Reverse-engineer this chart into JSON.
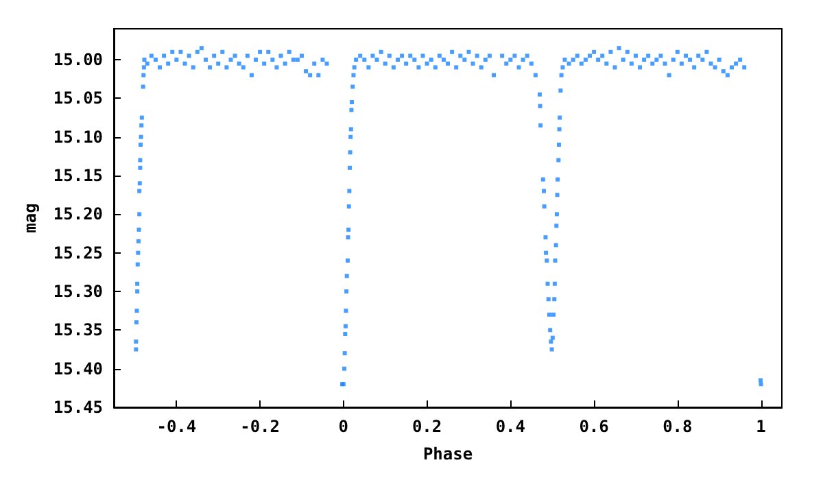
{
  "chart_data": {
    "type": "scatter",
    "xlabel": "Phase",
    "ylabel": "mag",
    "marker": "square",
    "grid": false,
    "xlim": [
      -0.55,
      1.05
    ],
    "xticks": [
      -0.4,
      -0.2,
      0,
      0.2,
      0.4,
      0.6,
      0.8,
      1
    ],
    "ylim": [
      15.45,
      14.96
    ],
    "yticks": [
      {
        "value": 15.0,
        "label": "15.00"
      },
      15.05,
      {
        "value": 15.1,
        "label": "15.10"
      },
      15.15,
      {
        "value": 15.2,
        "label": "15.20"
      },
      15.25,
      {
        "value": 15.3,
        "label": "15.30"
      },
      15.35,
      {
        "value": 15.4,
        "label": "15.40"
      },
      15.45
    ],
    "series": [
      {
        "color": "#1a84ff",
        "x": [
          -0.497,
          -0.497,
          -0.496,
          -0.495,
          -0.494,
          -0.494,
          -0.493,
          -0.492,
          -0.491,
          -0.49,
          -0.489,
          -0.489,
          -0.488,
          -0.487,
          -0.487,
          -0.486,
          -0.485,
          -0.484,
          -0.483,
          -0.48,
          -0.479,
          -0.478,
          -0.477,
          -0.47,
          -0.46,
          -0.45,
          -0.44,
          -0.43,
          -0.42,
          -0.41,
          -0.4,
          -0.39,
          -0.38,
          -0.37,
          -0.36,
          -0.35,
          -0.34,
          -0.33,
          -0.32,
          -0.31,
          -0.3,
          -0.29,
          -0.28,
          -0.27,
          -0.26,
          -0.25,
          -0.24,
          -0.23,
          -0.22,
          -0.21,
          -0.2,
          -0.19,
          -0.18,
          -0.17,
          -0.16,
          -0.15,
          -0.14,
          -0.13,
          -0.12,
          -0.11,
          -0.1,
          -0.09,
          -0.08,
          -0.07,
          -0.06,
          -0.05,
          -0.04,
          -0.003,
          0.0,
          0.002,
          0.003,
          0.004,
          0.005,
          0.006,
          0.007,
          0.008,
          0.01,
          0.011,
          0.012,
          0.013,
          0.014,
          0.015,
          0.016,
          0.017,
          0.018,
          0.019,
          0.02,
          0.022,
          0.024,
          0.026,
          0.03,
          0.04,
          0.05,
          0.06,
          0.07,
          0.08,
          0.09,
          0.1,
          0.11,
          0.12,
          0.13,
          0.14,
          0.15,
          0.16,
          0.17,
          0.18,
          0.19,
          0.2,
          0.21,
          0.22,
          0.23,
          0.24,
          0.25,
          0.26,
          0.27,
          0.28,
          0.29,
          0.3,
          0.31,
          0.32,
          0.33,
          0.34,
          0.35,
          0.36,
          0.38,
          0.39,
          0.4,
          0.41,
          0.42,
          0.43,
          0.44,
          0.45,
          0.46,
          0.47,
          0.471,
          0.472,
          0.478,
          0.48,
          0.481,
          0.484,
          0.485,
          0.487,
          0.489,
          0.491,
          0.493,
          0.495,
          0.497,
          0.499,
          0.501,
          0.503,
          0.505,
          0.506,
          0.507,
          0.509,
          0.51,
          0.511,
          0.512,
          0.513,
          0.515,
          0.516,
          0.517,
          0.518,
          0.52,
          0.522,
          0.525,
          0.53,
          0.54,
          0.55,
          0.56,
          0.57,
          0.58,
          0.59,
          0.6,
          0.61,
          0.62,
          0.63,
          0.64,
          0.65,
          0.66,
          0.67,
          0.68,
          0.69,
          0.7,
          0.71,
          0.72,
          0.73,
          0.74,
          0.75,
          0.76,
          0.77,
          0.78,
          0.79,
          0.8,
          0.81,
          0.82,
          0.83,
          0.84,
          0.85,
          0.86,
          0.87,
          0.88,
          0.89,
          0.9,
          0.91,
          0.92,
          0.93,
          0.94,
          0.95,
          0.96,
          0.999,
          1.0
        ],
        "values": [
          15.375,
          15.365,
          15.34,
          15.325,
          15.3,
          15.29,
          15.265,
          15.25,
          15.235,
          15.22,
          15.2,
          15.17,
          15.16,
          15.14,
          15.13,
          15.11,
          15.1,
          15.085,
          15.075,
          15.035,
          15.02,
          15.01,
          15.0,
          15.005,
          14.995,
          15.0,
          15.01,
          14.995,
          15.005,
          14.99,
          15.0,
          14.99,
          15.005,
          14.995,
          15.01,
          14.99,
          14.985,
          15.0,
          15.01,
          14.995,
          15.005,
          14.99,
          15.01,
          15.0,
          14.995,
          15.005,
          15.01,
          14.995,
          15.02,
          15.0,
          14.99,
          15.005,
          14.99,
          15.0,
          15.01,
          14.995,
          15.005,
          14.99,
          15.0,
          15.0,
          14.995,
          15.015,
          15.02,
          15.005,
          15.02,
          15.0,
          15.005,
          15.42,
          15.42,
          15.4,
          15.38,
          15.355,
          15.345,
          15.325,
          15.3,
          15.28,
          15.26,
          15.23,
          15.22,
          15.19,
          15.17,
          15.14,
          15.12,
          15.1,
          15.09,
          15.065,
          15.055,
          15.035,
          15.02,
          15.01,
          15.0,
          14.995,
          15.0,
          15.01,
          14.995,
          15.0,
          14.99,
          15.005,
          14.995,
          15.01,
          15.0,
          14.995,
          15.005,
          14.995,
          15.0,
          15.01,
          14.995,
          15.005,
          15.0,
          15.01,
          14.995,
          15.0,
          15.005,
          14.99,
          15.01,
          14.995,
          15.0,
          14.99,
          15.005,
          14.995,
          15.01,
          15.0,
          14.995,
          15.02,
          14.995,
          15.005,
          15.0,
          14.995,
          15.01,
          15.0,
          14.995,
          15.005,
          15.02,
          15.045,
          15.06,
          15.085,
          15.155,
          15.17,
          15.19,
          15.23,
          15.25,
          15.26,
          15.29,
          15.31,
          15.33,
          15.35,
          15.365,
          15.375,
          15.36,
          15.33,
          15.31,
          15.29,
          15.26,
          15.24,
          15.215,
          15.2,
          15.175,
          15.155,
          15.13,
          15.11,
          15.09,
          15.075,
          15.04,
          15.02,
          15.01,
          15.0,
          15.005,
          15.0,
          14.995,
          15.005,
          15.0,
          14.995,
          14.99,
          15.0,
          14.995,
          15.005,
          14.99,
          15.01,
          14.985,
          15.0,
          14.99,
          15.005,
          14.995,
          15.01,
          15.0,
          14.995,
          15.005,
          15.0,
          14.995,
          15.005,
          15.02,
          15.0,
          14.99,
          15.005,
          14.995,
          15.0,
          15.01,
          14.995,
          15.0,
          14.99,
          15.005,
          15.01,
          15.0,
          15.015,
          15.02,
          15.01,
          15.005,
          15.0,
          15.01,
          15.415,
          15.42
        ]
      }
    ]
  }
}
